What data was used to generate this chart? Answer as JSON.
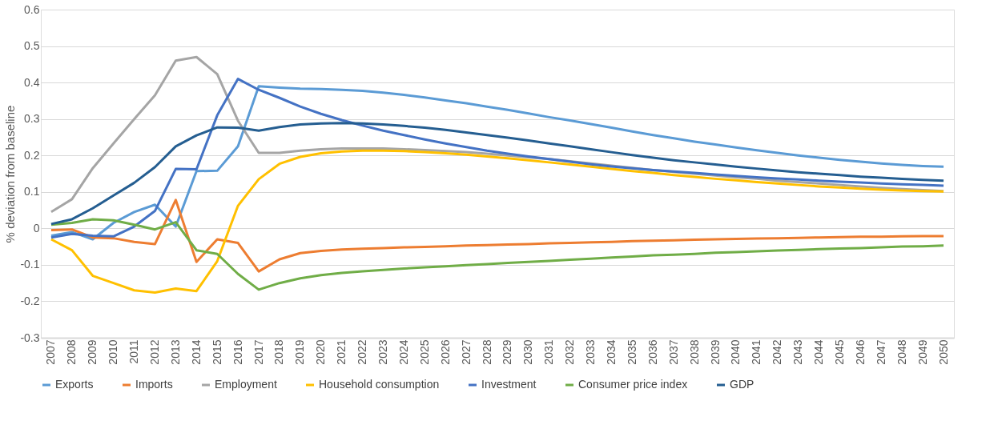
{
  "chart_data": {
    "type": "line",
    "ylabel": "% deviation from  baseline",
    "categories": [
      "2007",
      "2008",
      "2009",
      "2010",
      "2011",
      "2012",
      "2013",
      "2014",
      "2015",
      "2016",
      "2017",
      "2018",
      "2019",
      "2020",
      "2021",
      "2022",
      "2023",
      "2024",
      "2025",
      "2026",
      "2027",
      "2028",
      "2029",
      "2030",
      "2031",
      "2032",
      "2033",
      "2034",
      "2035",
      "2036",
      "2037",
      "2038",
      "2039",
      "2040",
      "2041",
      "2042",
      "2043",
      "2044",
      "2045",
      "2046",
      "2047",
      "2048",
      "2049",
      "2050"
    ],
    "series": [
      {
        "name": "Exports",
        "color": "#5b9bd5",
        "values": [
          -0.02,
          -0.01,
          -0.03,
          0.015,
          0.045,
          0.065,
          0.005,
          0.157,
          0.158,
          0.225,
          0.39,
          0.386,
          0.383,
          0.382,
          0.38,
          0.377,
          0.372,
          0.366,
          0.359,
          0.351,
          0.343,
          0.334,
          0.325,
          0.315,
          0.305,
          0.296,
          0.286,
          0.276,
          0.266,
          0.256,
          0.247,
          0.238,
          0.23,
          0.222,
          0.214,
          0.207,
          0.2,
          0.194,
          0.188,
          0.183,
          0.178,
          0.174,
          0.171,
          0.169
        ]
      },
      {
        "name": "Imports",
        "color": "#ed7d31",
        "values": [
          -0.005,
          -0.003,
          -0.025,
          -0.027,
          -0.037,
          -0.043,
          0.078,
          -0.092,
          -0.03,
          -0.04,
          -0.118,
          -0.085,
          -0.068,
          -0.062,
          -0.058,
          -0.056,
          -0.054,
          -0.052,
          -0.051,
          -0.049,
          -0.047,
          -0.046,
          -0.044,
          -0.043,
          -0.041,
          -0.04,
          -0.038,
          -0.037,
          -0.035,
          -0.034,
          -0.033,
          -0.031,
          -0.03,
          -0.029,
          -0.028,
          -0.027,
          -0.026,
          -0.025,
          -0.024,
          -0.023,
          -0.023,
          -0.022,
          -0.021,
          -0.021
        ]
      },
      {
        "name": "Employment",
        "color": "#a5a5a5",
        "values": [
          0.045,
          0.08,
          0.165,
          0.233,
          0.3,
          0.365,
          0.46,
          0.47,
          0.423,
          0.295,
          0.207,
          0.207,
          0.213,
          0.217,
          0.219,
          0.219,
          0.219,
          0.217,
          0.215,
          0.212,
          0.209,
          0.205,
          0.2,
          0.195,
          0.19,
          0.184,
          0.178,
          0.172,
          0.166,
          0.16,
          0.155,
          0.15,
          0.145,
          0.14,
          0.136,
          0.131,
          0.127,
          0.123,
          0.119,
          0.115,
          0.111,
          0.108,
          0.105,
          0.102
        ]
      },
      {
        "name": "Household consumption",
        "color": "#ffc000",
        "values": [
          -0.03,
          -0.06,
          -0.13,
          -0.15,
          -0.17,
          -0.176,
          -0.165,
          -0.172,
          -0.09,
          0.062,
          0.135,
          0.177,
          0.196,
          0.206,
          0.211,
          0.213,
          0.213,
          0.212,
          0.209,
          0.206,
          0.202,
          0.197,
          0.192,
          0.187,
          0.181,
          0.175,
          0.169,
          0.163,
          0.157,
          0.152,
          0.146,
          0.141,
          0.136,
          0.132,
          0.127,
          0.123,
          0.119,
          0.115,
          0.112,
          0.109,
          0.106,
          0.104,
          0.102,
          0.101
        ]
      },
      {
        "name": "Investment",
        "color": "#4472c4",
        "values": [
          -0.025,
          -0.015,
          -0.02,
          -0.022,
          0.005,
          0.048,
          0.163,
          0.162,
          0.31,
          0.41,
          0.38,
          0.358,
          0.334,
          0.314,
          0.297,
          0.282,
          0.268,
          0.256,
          0.244,
          0.233,
          0.223,
          0.213,
          0.205,
          0.197,
          0.19,
          0.183,
          0.176,
          0.17,
          0.165,
          0.16,
          0.156,
          0.152,
          0.148,
          0.144,
          0.14,
          0.137,
          0.134,
          0.131,
          0.128,
          0.126,
          0.123,
          0.121,
          0.119,
          0.117
        ]
      },
      {
        "name": "Consumer price index",
        "color": "#70ad47",
        "values": [
          0.01,
          0.015,
          0.025,
          0.022,
          0.01,
          -0.003,
          0.017,
          -0.06,
          -0.07,
          -0.125,
          -0.168,
          -0.15,
          -0.137,
          -0.128,
          -0.122,
          -0.118,
          -0.114,
          -0.11,
          -0.107,
          -0.104,
          -0.101,
          -0.098,
          -0.095,
          -0.092,
          -0.089,
          -0.086,
          -0.083,
          -0.08,
          -0.077,
          -0.074,
          -0.072,
          -0.07,
          -0.067,
          -0.065,
          -0.063,
          -0.061,
          -0.059,
          -0.057,
          -0.055,
          -0.054,
          -0.052,
          -0.05,
          -0.049,
          -0.047
        ]
      },
      {
        "name": "GDP",
        "color": "#255e91",
        "values": [
          0.012,
          0.025,
          0.055,
          0.09,
          0.125,
          0.168,
          0.225,
          0.255,
          0.277,
          0.276,
          0.268,
          0.278,
          0.285,
          0.288,
          0.289,
          0.288,
          0.285,
          0.281,
          0.276,
          0.27,
          0.263,
          0.256,
          0.249,
          0.241,
          0.233,
          0.225,
          0.217,
          0.209,
          0.201,
          0.194,
          0.187,
          0.181,
          0.175,
          0.169,
          0.164,
          0.159,
          0.154,
          0.15,
          0.146,
          0.142,
          0.139,
          0.136,
          0.133,
          0.131
        ]
      }
    ],
    "ylim": [
      -0.3,
      0.6
    ],
    "yticks": [
      -0.3,
      -0.2,
      -0.1,
      0,
      0.1,
      0.2,
      0.3,
      0.4,
      0.5,
      0.6
    ],
    "grid": "y",
    "legend": "bottom",
    "line_style": "solid"
  }
}
